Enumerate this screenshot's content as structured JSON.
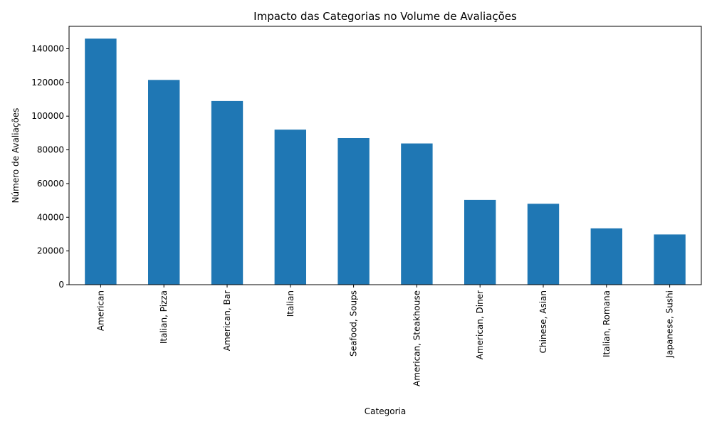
{
  "chart_data": {
    "type": "bar",
    "title": "Impacto das Categorias no Volume de Avaliações",
    "xlabel": "Categoria",
    "ylabel": "Número de Avaliações",
    "categories": [
      "American",
      "Italian, Pizza",
      "American, Bar",
      "Italian",
      "Seafood, Soups",
      "American, Steakhouse",
      "American, Diner",
      "Chinese, Asian",
      "Italian, Romana",
      "Japanese, Sushi"
    ],
    "values": [
      146000,
      121500,
      109000,
      92000,
      87000,
      83800,
      50300,
      48000,
      33400,
      29800
    ],
    "ylim": [
      0,
      153300
    ],
    "yticks": [
      0,
      20000,
      40000,
      60000,
      80000,
      100000,
      120000,
      140000
    ],
    "ytick_labels": [
      "0",
      "20000",
      "40000",
      "60000",
      "80000",
      "100000",
      "120000",
      "140000"
    ],
    "grid": false,
    "legend": "none",
    "bar_color": "#1f77b4"
  }
}
